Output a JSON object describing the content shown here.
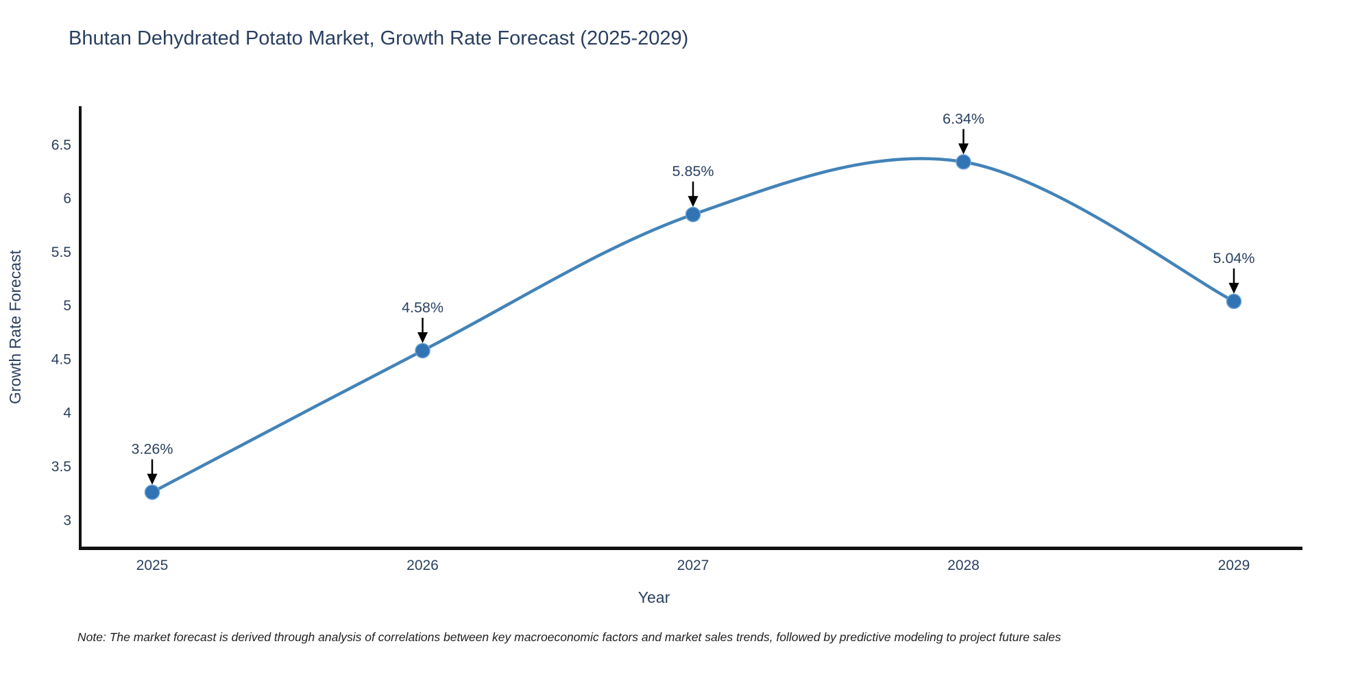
{
  "title": "Bhutan Dehydrated Potato Market, Growth Rate Forecast (2025-2029)",
  "note": "Note: The market forecast is derived through analysis of correlations between key macroeconomic factors and market sales trends, followed by predictive modeling to project future sales",
  "chart_data": {
    "type": "line",
    "x": [
      "2025",
      "2026",
      "2027",
      "2028",
      "2029"
    ],
    "values": [
      3.26,
      4.58,
      5.85,
      6.34,
      5.04
    ],
    "point_labels": [
      "3.26%",
      "4.58%",
      "5.85%",
      "6.34%",
      "5.04%"
    ],
    "title": "Bhutan Dehydrated Potato Market, Growth Rate Forecast (2025-2029)",
    "xlabel": "Year",
    "ylabel": "Growth Rate Forecast",
    "yticks": [
      3,
      3.5,
      4,
      4.5,
      5,
      5.5,
      6,
      6.5
    ],
    "ylim": [
      2.74,
      6.86
    ],
    "line_shape": "spline",
    "grid": false,
    "legend_position": "none",
    "colors": {
      "line": "#4383b8",
      "marker_fill": "#3273b3",
      "marker_edge": "#6aa2d8",
      "annotation_arrow": "#000000",
      "annotation_text": "#2a3f5f",
      "axis_line": "#111111",
      "tick_text": "#2a3f5f",
      "title_text": "#2a3f5f"
    }
  }
}
